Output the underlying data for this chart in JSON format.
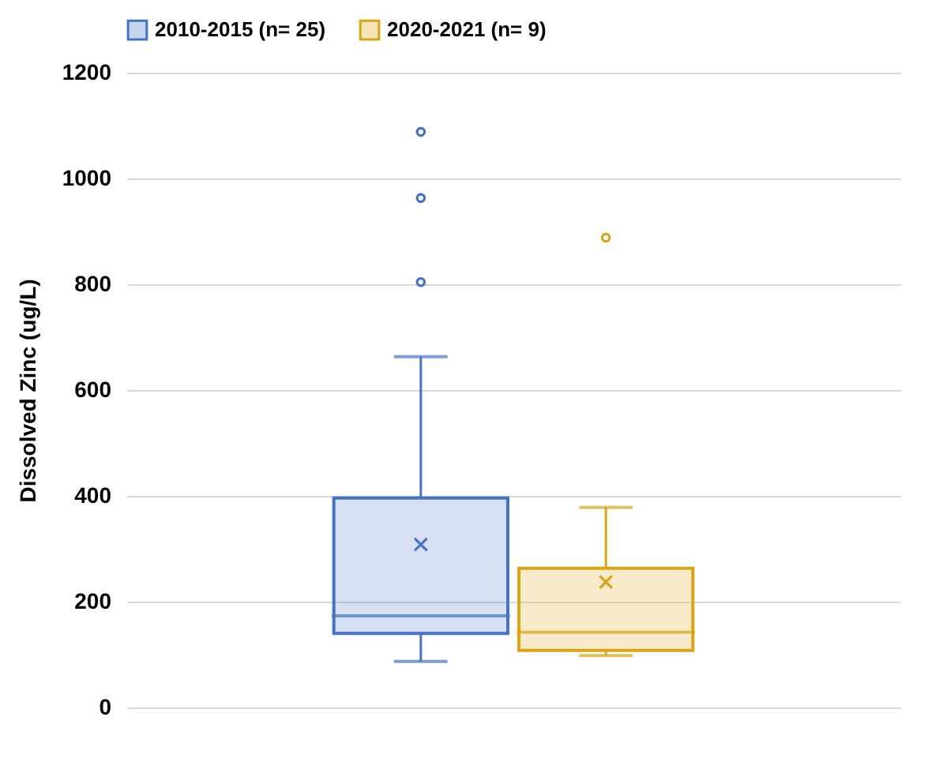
{
  "chart_data": {
    "type": "box",
    "ylabel": "Dissolved Zinc (ug/L)",
    "categories": [
      null
    ],
    "series": [
      {
        "name": "2010-2015 (n= 25)",
        "color": "#4472c4",
        "boxes": [
          {
            "low": 87,
            "q1": 140,
            "median": 173,
            "q3": 396,
            "high": 663,
            "mean": 308,
            "outliers": [
              804,
              963,
              1088
            ]
          }
        ]
      },
      {
        "name": "2020-2021 (n= 9)",
        "color": "#d9a514",
        "boxes": [
          {
            "low": 98,
            "q1": 108,
            "median": 142,
            "q3": 263,
            "high": 378,
            "mean": 237,
            "outliers": [
              888
            ]
          }
        ]
      }
    ],
    "ylim": [
      0,
      1200
    ],
    "yticks": [
      0,
      200,
      400,
      600,
      800,
      1000,
      1200
    ],
    "grid": "y",
    "legend": "top",
    "tick_labels": "y"
  }
}
